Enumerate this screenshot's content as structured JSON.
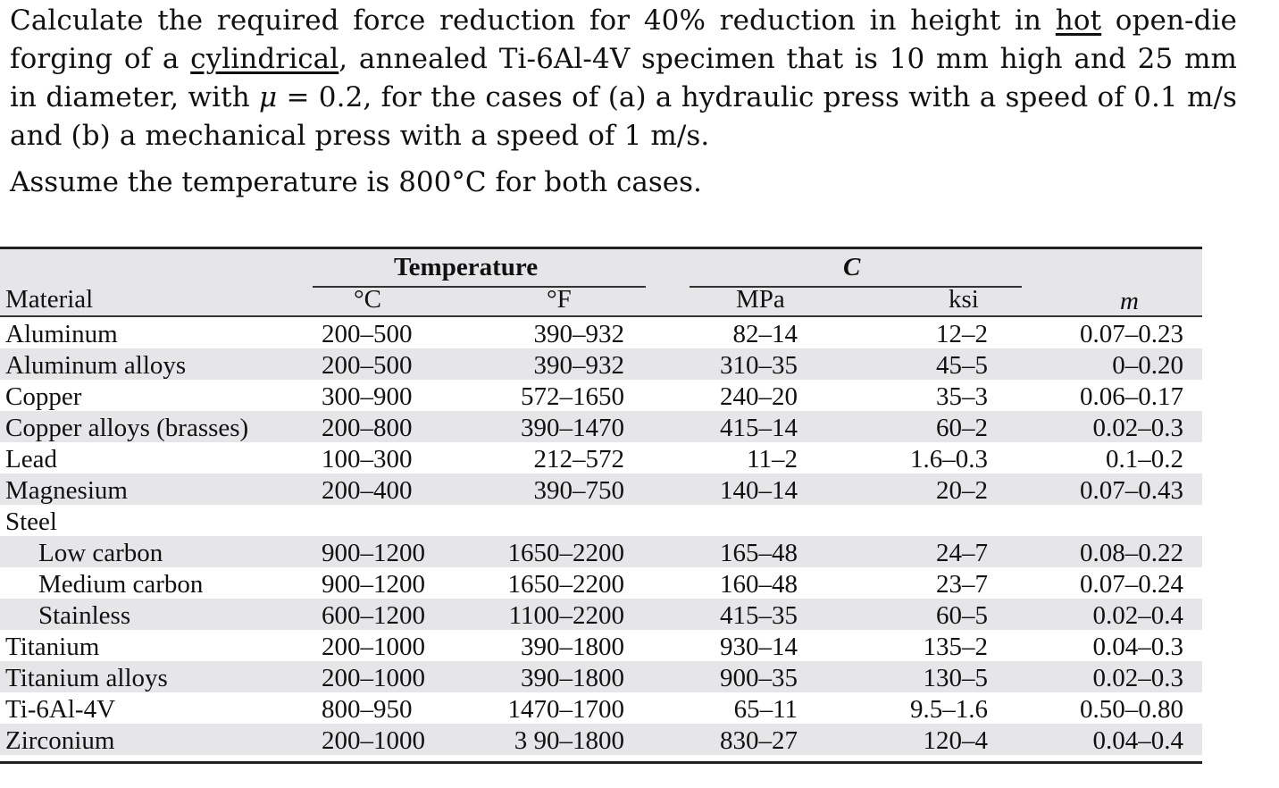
{
  "problem": {
    "para1_parts": [
      "Calculate the required force reduction for 40% reduction in height in ",
      "hot",
      " open-die forging of a ",
      "cylindrical",
      ", annealed Ti-6Al-4V specimen that is 10 mm high and 25 mm in diameter, with ",
      "μ",
      " = 0.2, for the cases of (a) a hydraulic press with a speed of 0.1 m/s and (b) a mechanical press with a speed of 1 m/s."
    ],
    "para2": "Assume the temperature is 800°C for both cases."
  },
  "table": {
    "headers": {
      "material": "Material",
      "temperature_group": "Temperature",
      "celsius": "°C",
      "fahrenheit": "°F",
      "c_group": "C",
      "mpa": "MPa",
      "ksi": "ksi",
      "m": "m"
    },
    "rows": [
      {
        "material": "Aluminum",
        "indent": false,
        "c": "200–500",
        "f": "390–932",
        "mpa": "82–14",
        "ksi": "12–2",
        "m": "0.07–0.23"
      },
      {
        "material": "Aluminum alloys",
        "indent": false,
        "c": "200–500",
        "f": "390–932",
        "mpa": "310–35",
        "ksi": "45–5",
        "m": "0–0.20"
      },
      {
        "material": "Copper",
        "indent": false,
        "c": "300–900",
        "f": "572–1650",
        "mpa": "240–20",
        "ksi": "35–3",
        "m": "0.06–0.17"
      },
      {
        "material": "Copper alloys (brasses)",
        "indent": false,
        "c": "200–800",
        "f": "390–1470",
        "mpa": "415–14",
        "ksi": "60–2",
        "m": "0.02–0.3"
      },
      {
        "material": "Lead",
        "indent": false,
        "c": "100–300",
        "f": "212–572",
        "mpa": "11–2",
        "ksi": "1.6–0.3",
        "m": "0.1–0.2"
      },
      {
        "material": "Magnesium",
        "indent": false,
        "c": "200–400",
        "f": "390–750",
        "mpa": "140–14",
        "ksi": "20–2",
        "m": "0.07–0.43"
      },
      {
        "material": "Steel",
        "indent": false,
        "c": "",
        "f": "",
        "mpa": "",
        "ksi": "",
        "m": ""
      },
      {
        "material": "Low carbon",
        "indent": true,
        "c": "900–1200",
        "f": "1650–2200",
        "mpa": "165–48",
        "ksi": "24–7",
        "m": "0.08–0.22"
      },
      {
        "material": "Medium carbon",
        "indent": true,
        "c": "900–1200",
        "f": "1650–2200",
        "mpa": "160–48",
        "ksi": "23–7",
        "m": "0.07–0.24"
      },
      {
        "material": "Stainless",
        "indent": true,
        "c": "600–1200",
        "f": "1100–2200",
        "mpa": "415–35",
        "ksi": "60–5",
        "m": "0.02–0.4"
      },
      {
        "material": "Titanium",
        "indent": false,
        "c": "200–1000",
        "f": "390–1800",
        "mpa": "930–14",
        "ksi": "135–2",
        "m": "0.04–0.3"
      },
      {
        "material": "Titanium alloys",
        "indent": false,
        "c": "200–1000",
        "f": "390–1800",
        "mpa": "900–35",
        "ksi": "130–5",
        "m": "0.02–0.3"
      },
      {
        "material": "Ti-6Al-4V",
        "indent": false,
        "c": "800–950",
        "f": "1470–1700",
        "mpa": "65–11",
        "ksi": "9.5–1.6",
        "m": "0.50–0.80"
      },
      {
        "material": "Zirconium",
        "indent": false,
        "c": "200–1000",
        "f": "3 90–1800",
        "mpa": "830–27",
        "ksi": "120–4",
        "m": "0.04–0.4"
      }
    ],
    "row_shade_color": "#e6e6e8"
  }
}
